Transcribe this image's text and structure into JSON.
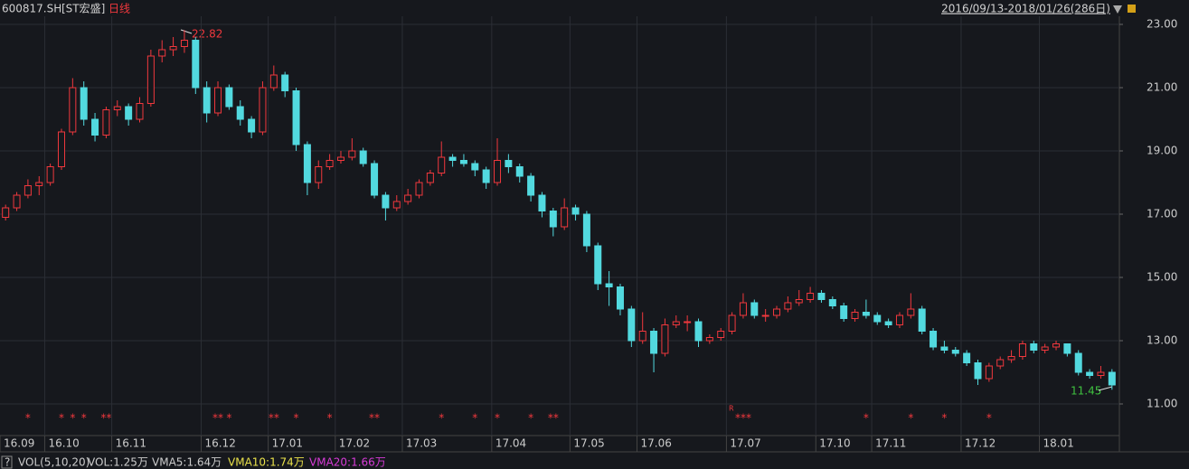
{
  "chart_data": {
    "type": "candlestick",
    "symbol": "600817.SH",
    "name": "[ST宏盛]",
    "period": "日线",
    "range_label": "2016/09/13-2018/01/26(286日)",
    "ylim": [
      10,
      23.3
    ],
    "yticks": [
      {
        "value": 11,
        "label": "11.00"
      },
      {
        "value": 13,
        "label": "13.00"
      },
      {
        "value": 15,
        "label": "15.00"
      },
      {
        "value": 17,
        "label": "17.00"
      },
      {
        "value": 19,
        "label": "19.00"
      },
      {
        "value": 21,
        "label": "21.00"
      },
      {
        "value": 23,
        "label": "23.00"
      }
    ],
    "up_color": "#f0383d",
    "down_color": "#52d9df",
    "grid": true,
    "high_label": "22.82",
    "low_label": "11.45",
    "r_mark": "R",
    "categories": [
      "16.09",
      null,
      null,
      null,
      "16.10",
      null,
      null,
      null,
      null,
      null,
      "16.11",
      null,
      null,
      null,
      null,
      null,
      null,
      null,
      "16.12",
      null,
      null,
      null,
      null,
      null,
      "17.01",
      null,
      null,
      null,
      null,
      null,
      "17.02",
      null,
      null,
      null,
      null,
      null,
      "17.03",
      null,
      null,
      null,
      null,
      null,
      null,
      null,
      "17.04",
      null,
      null,
      null,
      null,
      null,
      null,
      "17.05",
      null,
      null,
      null,
      null,
      null,
      "17.06",
      null,
      null,
      null,
      null,
      null,
      null,
      null,
      "17.07",
      null,
      null,
      null,
      null,
      null,
      null,
      null,
      "17.10",
      null,
      null,
      null,
      null,
      "17.11",
      null,
      null,
      null,
      null,
      null,
      null,
      null,
      "17.12",
      null,
      null,
      null,
      null,
      null,
      null,
      "18.01",
      null,
      null,
      null,
      null,
      null,
      null
    ],
    "ohlc": [
      [
        16.9,
        17.3,
        16.8,
        17.2
      ],
      [
        17.2,
        17.7,
        17.1,
        17.6
      ],
      [
        17.6,
        18.1,
        17.5,
        17.9
      ],
      [
        17.9,
        18.2,
        17.6,
        18.0
      ],
      [
        18.0,
        18.6,
        17.9,
        18.5
      ],
      [
        18.5,
        19.7,
        18.4,
        19.6
      ],
      [
        19.6,
        21.3,
        19.5,
        21.0
      ],
      [
        21.0,
        21.2,
        19.8,
        20.0
      ],
      [
        20.0,
        20.2,
        19.3,
        19.5
      ],
      [
        19.5,
        20.4,
        19.4,
        20.3
      ],
      [
        20.3,
        20.6,
        20.1,
        20.4
      ],
      [
        20.4,
        20.5,
        19.8,
        20.0
      ],
      [
        20.0,
        20.7,
        19.9,
        20.5
      ],
      [
        20.5,
        22.2,
        20.4,
        22.0
      ],
      [
        22.0,
        22.5,
        21.8,
        22.2
      ],
      [
        22.2,
        22.6,
        22.0,
        22.3
      ],
      [
        22.3,
        22.82,
        22.1,
        22.5
      ],
      [
        22.5,
        22.6,
        20.8,
        21.0
      ],
      [
        21.0,
        21.2,
        19.9,
        20.2
      ],
      [
        20.2,
        21.2,
        20.1,
        21.0
      ],
      [
        21.0,
        21.1,
        20.3,
        20.4
      ],
      [
        20.4,
        20.6,
        19.8,
        20.0
      ],
      [
        20.0,
        20.1,
        19.4,
        19.6
      ],
      [
        19.6,
        21.2,
        19.5,
        21.0
      ],
      [
        21.0,
        21.7,
        20.9,
        21.4
      ],
      [
        21.4,
        21.5,
        20.7,
        20.9
      ],
      [
        20.9,
        21.0,
        19.0,
        19.2
      ],
      [
        19.2,
        19.3,
        17.6,
        18.0
      ],
      [
        18.0,
        18.7,
        17.8,
        18.5
      ],
      [
        18.5,
        18.9,
        18.4,
        18.7
      ],
      [
        18.7,
        19.0,
        18.6,
        18.8
      ],
      [
        18.8,
        19.4,
        18.7,
        19.0
      ],
      [
        19.0,
        19.1,
        18.5,
        18.6
      ],
      [
        18.6,
        18.7,
        17.5,
        17.6
      ],
      [
        17.6,
        17.7,
        16.8,
        17.2
      ],
      [
        17.2,
        17.6,
        17.1,
        17.4
      ],
      [
        17.4,
        17.8,
        17.3,
        17.6
      ],
      [
        17.6,
        18.1,
        17.5,
        18.0
      ],
      [
        18.0,
        18.4,
        17.9,
        18.3
      ],
      [
        18.3,
        19.3,
        18.2,
        18.8
      ],
      [
        18.8,
        18.9,
        18.5,
        18.7
      ],
      [
        18.7,
        18.9,
        18.5,
        18.6
      ],
      [
        18.6,
        18.7,
        18.2,
        18.4
      ],
      [
        18.4,
        18.5,
        17.8,
        18.0
      ],
      [
        18.0,
        19.4,
        17.9,
        18.7
      ],
      [
        18.7,
        18.9,
        18.3,
        18.5
      ],
      [
        18.5,
        18.6,
        18.0,
        18.2
      ],
      [
        18.2,
        18.3,
        17.4,
        17.6
      ],
      [
        17.6,
        17.7,
        16.9,
        17.1
      ],
      [
        17.1,
        17.2,
        16.3,
        16.6
      ],
      [
        16.6,
        17.5,
        16.5,
        17.2
      ],
      [
        17.2,
        17.3,
        16.8,
        17.0
      ],
      [
        17.0,
        17.1,
        15.8,
        16.0
      ],
      [
        16.0,
        16.1,
        14.6,
        14.8
      ],
      [
        14.8,
        15.2,
        14.1,
        14.7
      ],
      [
        14.7,
        14.8,
        13.8,
        14.0
      ],
      [
        14.0,
        14.1,
        12.8,
        13.0
      ],
      [
        13.0,
        13.9,
        12.9,
        13.3
      ],
      [
        13.3,
        13.4,
        12.0,
        12.6
      ],
      [
        12.6,
        13.7,
        12.5,
        13.5
      ],
      [
        13.5,
        13.8,
        13.4,
        13.6
      ],
      [
        13.6,
        13.8,
        13.3,
        13.6
      ],
      [
        13.6,
        13.7,
        12.8,
        13.0
      ],
      [
        13.0,
        13.2,
        12.9,
        13.1
      ],
      [
        13.1,
        13.4,
        13.0,
        13.3
      ],
      [
        13.3,
        13.9,
        13.2,
        13.8
      ],
      [
        13.8,
        14.5,
        13.7,
        14.2
      ],
      [
        14.2,
        14.3,
        13.7,
        13.8
      ],
      [
        13.8,
        14.0,
        13.6,
        13.8
      ],
      [
        13.8,
        14.1,
        13.7,
        14.0
      ],
      [
        14.0,
        14.4,
        13.9,
        14.2
      ],
      [
        14.2,
        14.6,
        14.1,
        14.3
      ],
      [
        14.3,
        14.7,
        14.2,
        14.5
      ],
      [
        14.5,
        14.6,
        14.2,
        14.3
      ],
      [
        14.3,
        14.4,
        14.0,
        14.1
      ],
      [
        14.1,
        14.2,
        13.6,
        13.7
      ],
      [
        13.7,
        14.0,
        13.6,
        13.9
      ],
      [
        13.9,
        14.3,
        13.7,
        13.8
      ],
      [
        13.8,
        13.9,
        13.5,
        13.6
      ],
      [
        13.6,
        13.7,
        13.4,
        13.5
      ],
      [
        13.5,
        13.9,
        13.4,
        13.8
      ],
      [
        13.8,
        14.5,
        13.7,
        14.0
      ],
      [
        14.0,
        14.1,
        13.2,
        13.3
      ],
      [
        13.3,
        13.4,
        12.7,
        12.8
      ],
      [
        12.8,
        13.0,
        12.6,
        12.7
      ],
      [
        12.7,
        12.8,
        12.5,
        12.6
      ],
      [
        12.6,
        12.7,
        12.2,
        12.3
      ],
      [
        12.3,
        12.4,
        11.6,
        11.8
      ],
      [
        11.8,
        12.3,
        11.7,
        12.2
      ],
      [
        12.2,
        12.5,
        12.1,
        12.4
      ],
      [
        12.4,
        12.7,
        12.3,
        12.5
      ],
      [
        12.5,
        13.0,
        12.4,
        12.9
      ],
      [
        12.9,
        13.0,
        12.6,
        12.7
      ],
      [
        12.7,
        12.9,
        12.6,
        12.8
      ],
      [
        12.8,
        13.0,
        12.7,
        12.9
      ],
      [
        12.9,
        12.9,
        12.5,
        12.6
      ],
      [
        12.6,
        12.7,
        11.9,
        12.0
      ],
      [
        12.0,
        12.1,
        11.8,
        11.9
      ],
      [
        11.9,
        12.2,
        11.8,
        12.0
      ],
      [
        12.0,
        12.1,
        11.45,
        11.6
      ]
    ],
    "signals": [
      null,
      null,
      "*",
      null,
      null,
      "*",
      "*",
      "*",
      null,
      "**",
      null,
      null,
      null,
      null,
      null,
      null,
      null,
      null,
      null,
      "**",
      "*",
      null,
      null,
      null,
      "**",
      null,
      "*",
      null,
      null,
      "*",
      null,
      null,
      null,
      "**",
      null,
      null,
      null,
      null,
      null,
      "*",
      null,
      null,
      "*",
      null,
      "*",
      null,
      null,
      "*",
      null,
      "**",
      null,
      null,
      null,
      null,
      null,
      null,
      null,
      null,
      null,
      null,
      null,
      null,
      null,
      null,
      null,
      null,
      "***",
      null,
      null,
      null,
      null,
      null,
      null,
      null,
      null,
      null,
      null,
      "*",
      null,
      null,
      null,
      "*",
      null,
      null,
      "*",
      null,
      null,
      null,
      "*",
      null,
      null,
      null,
      null,
      null,
      null,
      null,
      null,
      null,
      null,
      null
    ],
    "footer": {
      "help": "?",
      "indicator": "VOL(5,10,20)",
      "vol": "VOL:1.25万",
      "vma5": "VMA5:1.64万",
      "vma10": "VMA10:1.74万",
      "vma20": "VMA20:1.66万"
    }
  }
}
